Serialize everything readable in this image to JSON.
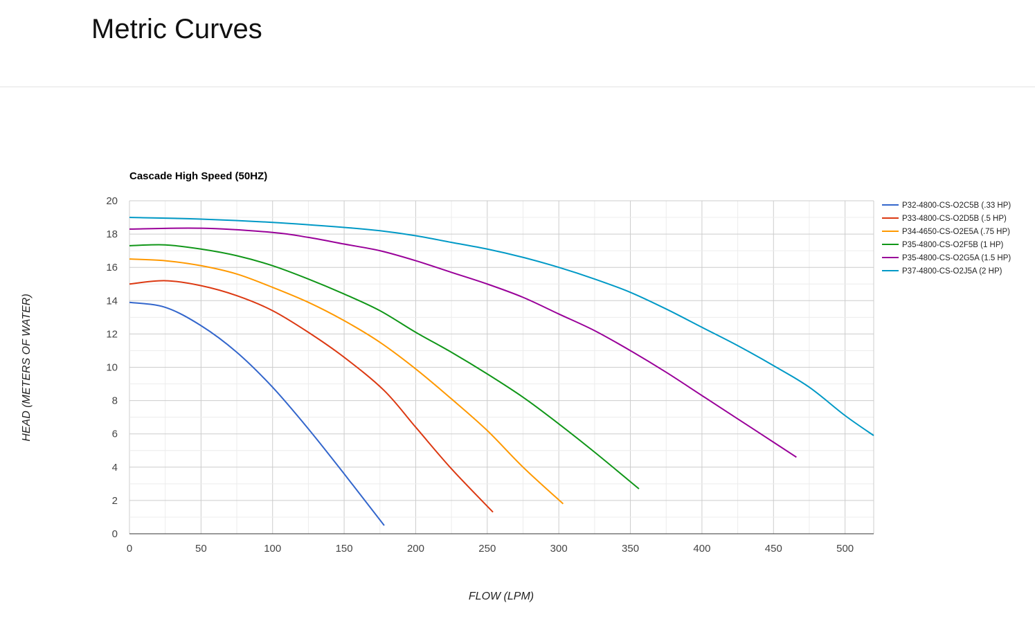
{
  "page": {
    "title": "Metric Curves"
  },
  "chart_data": {
    "type": "line",
    "title": "Cascade High Speed (50HZ)",
    "xlabel": "FLOW (LPM)",
    "ylabel": "HEAD (METERS OF WATER)",
    "xlim": [
      0,
      520
    ],
    "ylim": [
      0,
      20
    ],
    "xticks": [
      0,
      50,
      100,
      150,
      200,
      250,
      300,
      350,
      400,
      450,
      500
    ],
    "yticks": [
      0,
      2,
      4,
      6,
      8,
      10,
      12,
      14,
      16,
      18,
      20
    ],
    "grid": true,
    "legend": "right",
    "series": [
      {
        "name": "P32-4800-CS-O2C5B (.33 HP)",
        "color": "#3366cc",
        "points": [
          [
            0,
            13.9
          ],
          [
            25,
            13.6
          ],
          [
            50,
            12.5
          ],
          [
            75,
            10.9
          ],
          [
            100,
            8.8
          ],
          [
            125,
            6.3
          ],
          [
            150,
            3.6
          ],
          [
            178,
            0.5
          ]
        ]
      },
      {
        "name": "P33-4800-CS-O2D5B (.5 HP)",
        "color": "#dc3912",
        "points": [
          [
            0,
            15.0
          ],
          [
            25,
            15.2
          ],
          [
            50,
            14.9
          ],
          [
            75,
            14.3
          ],
          [
            100,
            13.4
          ],
          [
            125,
            12.1
          ],
          [
            150,
            10.6
          ],
          [
            178,
            8.6
          ],
          [
            200,
            6.4
          ],
          [
            225,
            3.9
          ],
          [
            254,
            1.3
          ]
        ]
      },
      {
        "name": "P34-4650-CS-O2E5A (.75 HP)",
        "color": "#ff9900",
        "points": [
          [
            0,
            16.5
          ],
          [
            25,
            16.4
          ],
          [
            50,
            16.1
          ],
          [
            75,
            15.6
          ],
          [
            100,
            14.8
          ],
          [
            125,
            13.9
          ],
          [
            150,
            12.8
          ],
          [
            175,
            11.5
          ],
          [
            200,
            9.9
          ],
          [
            225,
            8.1
          ],
          [
            250,
            6.2
          ],
          [
            275,
            4.0
          ],
          [
            303,
            1.8
          ]
        ]
      },
      {
        "name": "P35-4800-CS-O2F5B (1 HP)",
        "color": "#109618",
        "points": [
          [
            0,
            17.3
          ],
          [
            25,
            17.35
          ],
          [
            50,
            17.1
          ],
          [
            75,
            16.7
          ],
          [
            100,
            16.1
          ],
          [
            125,
            15.3
          ],
          [
            150,
            14.4
          ],
          [
            175,
            13.4
          ],
          [
            200,
            12.1
          ],
          [
            225,
            10.9
          ],
          [
            250,
            9.6
          ],
          [
            275,
            8.2
          ],
          [
            300,
            6.6
          ],
          [
            325,
            4.9
          ],
          [
            356,
            2.7
          ]
        ]
      },
      {
        "name": "P35-4800-CS-O2G5A (1.5 HP)",
        "color": "#990099",
        "points": [
          [
            0,
            18.3
          ],
          [
            50,
            18.35
          ],
          [
            100,
            18.1
          ],
          [
            125,
            17.8
          ],
          [
            150,
            17.4
          ],
          [
            175,
            17.0
          ],
          [
            200,
            16.4
          ],
          [
            225,
            15.7
          ],
          [
            250,
            15.0
          ],
          [
            275,
            14.2
          ],
          [
            300,
            13.2
          ],
          [
            325,
            12.2
          ],
          [
            350,
            11.0
          ],
          [
            375,
            9.7
          ],
          [
            400,
            8.3
          ],
          [
            425,
            6.9
          ],
          [
            450,
            5.5
          ],
          [
            466,
            4.6
          ]
        ]
      },
      {
        "name": "P37-4800-CS-O2J5A (2 HP)",
        "color": "#0099c6",
        "points": [
          [
            0,
            19.0
          ],
          [
            50,
            18.9
          ],
          [
            100,
            18.7
          ],
          [
            150,
            18.4
          ],
          [
            175,
            18.2
          ],
          [
            200,
            17.9
          ],
          [
            225,
            17.5
          ],
          [
            250,
            17.1
          ],
          [
            275,
            16.6
          ],
          [
            300,
            16.0
          ],
          [
            325,
            15.3
          ],
          [
            350,
            14.5
          ],
          [
            375,
            13.5
          ],
          [
            400,
            12.4
          ],
          [
            425,
            11.3
          ],
          [
            450,
            10.1
          ],
          [
            475,
            8.8
          ],
          [
            500,
            7.1
          ],
          [
            520,
            5.9
          ]
        ]
      }
    ]
  }
}
